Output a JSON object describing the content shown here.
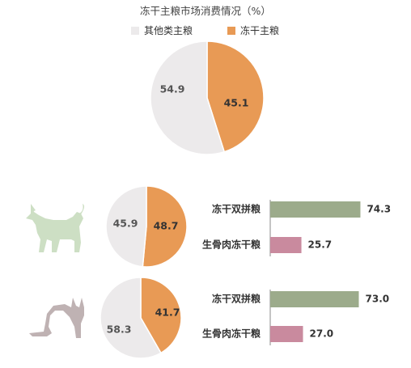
{
  "colors": {
    "other_slice": "#eceaeb",
    "freeze_slice": "#e89a55",
    "bar_double": "#9cab8b",
    "bar_raw": "#c98a9e",
    "dog": "#cddfc4",
    "cat": "#bfb2b3",
    "axis": "#8a8a8a"
  },
  "legend": [
    {
      "label": "其他类主粮",
      "color": "#eceaeb"
    },
    {
      "label": "冻干主粮",
      "color": "#e89a55"
    }
  ],
  "icons": {
    "dog": "dog-silhouette-icon",
    "cat": "cat-silhouette-icon"
  },
  "chart_data": [
    {
      "type": "pie",
      "title": "冻干主粮市场消费情况（%）",
      "slices": [
        {
          "label": "其他类主粮",
          "value": 54.9
        },
        {
          "label": "冻干主粮",
          "value": 45.1
        }
      ]
    },
    {
      "type": "pie",
      "title": "",
      "slices": [
        {
          "label": "其他类主粮",
          "value": 45.9
        },
        {
          "label": "冻干主粮",
          "value": 48.7
        }
      ]
    },
    {
      "type": "bar",
      "orientation": "horizontal",
      "title": "",
      "categories": [
        "冻干双拼粮",
        "生骨肉冻干粮"
      ],
      "values": [
        74.3,
        25.7
      ],
      "xlim": [
        0,
        100
      ]
    },
    {
      "type": "pie",
      "title": "",
      "slices": [
        {
          "label": "其他类主粮",
          "value": 58.3
        },
        {
          "label": "冻干主粮",
          "value": 41.7
        }
      ]
    },
    {
      "type": "bar",
      "orientation": "horizontal",
      "title": "",
      "categories": [
        "冻干双拼粮",
        "生骨肉冻干粮"
      ],
      "values": [
        73.0,
        27.0
      ],
      "xlim": [
        0,
        100
      ]
    }
  ]
}
